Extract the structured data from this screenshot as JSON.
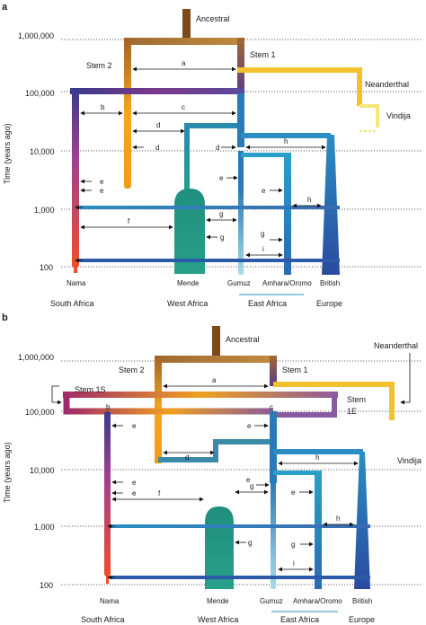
{
  "y_axis_label": "Time (years ago)",
  "tick_labels": [
    "1,000,000",
    "100,000",
    "10,000",
    "1,000",
    "100"
  ],
  "region_labels": {
    "south_africa": "South Africa",
    "west_africa": "West Africa",
    "east_africa": "East Africa",
    "europe": "Europe"
  },
  "population_labels": {
    "nama": "Nama",
    "mende": "Mende",
    "gumuz": "Gumuz",
    "amhara_oromo": "Amhara/Oromo",
    "british": "British",
    "neanderthal": "Neanderthal",
    "vindija": "Vindija",
    "ancestral": "Ancestral"
  },
  "panel_a": {
    "label": "a",
    "stem_labels": [
      "Stem 2",
      "Stem 1"
    ],
    "migration_letters": [
      "a",
      "b",
      "c",
      "d",
      "d",
      "d",
      "h",
      "e",
      "e",
      "e",
      "e",
      "f",
      "g",
      "g",
      "h",
      "g",
      "i"
    ]
  },
  "panel_b": {
    "label": "b",
    "stem_labels": [
      "Stem 1S",
      "Stem 2",
      "Stem 1",
      "Stem",
      "1E"
    ],
    "migration_letters": [
      "a",
      "b",
      "c",
      "e",
      "e",
      "d",
      "h",
      "e",
      "e",
      "f",
      "g",
      "g",
      "e",
      "e",
      "h",
      "g",
      "i"
    ]
  },
  "colors": {
    "ancestral": "#7a4a1a",
    "stem2": "#f0a020",
    "stem1": "#7a3a8a",
    "south_africa": "#e5452b",
    "west_africa": "#1f9a84",
    "east_africa": "#2b8fc4",
    "europe": "#2a5aa8",
    "neanderthal": "#f2c12e",
    "vindija": "#f5e87a"
  }
}
